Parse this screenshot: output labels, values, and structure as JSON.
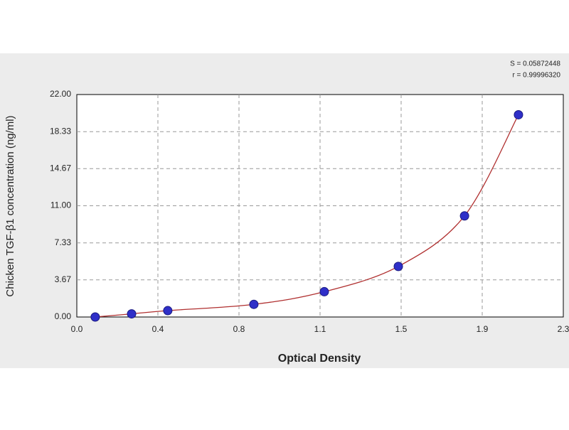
{
  "chart_data": {
    "type": "scatter",
    "x_label": "Optical Density",
    "y_label": "Chicken TGF-β1 concentration (ng/ml)",
    "annotations": [
      "S = 0.05872448",
      "r = 0.99996320"
    ],
    "x": [
      0.087,
      0.259,
      0.43,
      0.837,
      1.17,
      1.52,
      1.833,
      2.088
    ],
    "values": [
      0,
      0.31,
      0.63,
      1.25,
      2.5,
      5,
      10,
      20
    ],
    "color": "#2f2fc8",
    "line_color": "#b03030",
    "xlim": [
      0,
      2.3
    ],
    "ylim": [
      0,
      22
    ],
    "xticks": [
      {
        "value": 0,
        "label": "0.0"
      },
      {
        "value": 0.3833,
        "label": "0.4"
      },
      {
        "value": 0.7667,
        "label": "0.8"
      },
      {
        "value": 1.15,
        "label": "1.1"
      },
      {
        "value": 1.5333,
        "label": "1.5"
      },
      {
        "value": 1.9167,
        "label": "1.9"
      },
      {
        "value": 2.3,
        "label": "2.3"
      }
    ],
    "yticks": [
      {
        "value": 0,
        "label": "0.00"
      },
      {
        "value": 3.67,
        "label": "3.67"
      },
      {
        "value": 7.33,
        "label": "7.33"
      },
      {
        "value": 11,
        "label": "11.00"
      },
      {
        "value": 14.67,
        "label": "14.67"
      },
      {
        "value": 18.33,
        "label": "18.33"
      },
      {
        "value": 22,
        "label": "22.00"
      }
    ],
    "grid": true
  }
}
